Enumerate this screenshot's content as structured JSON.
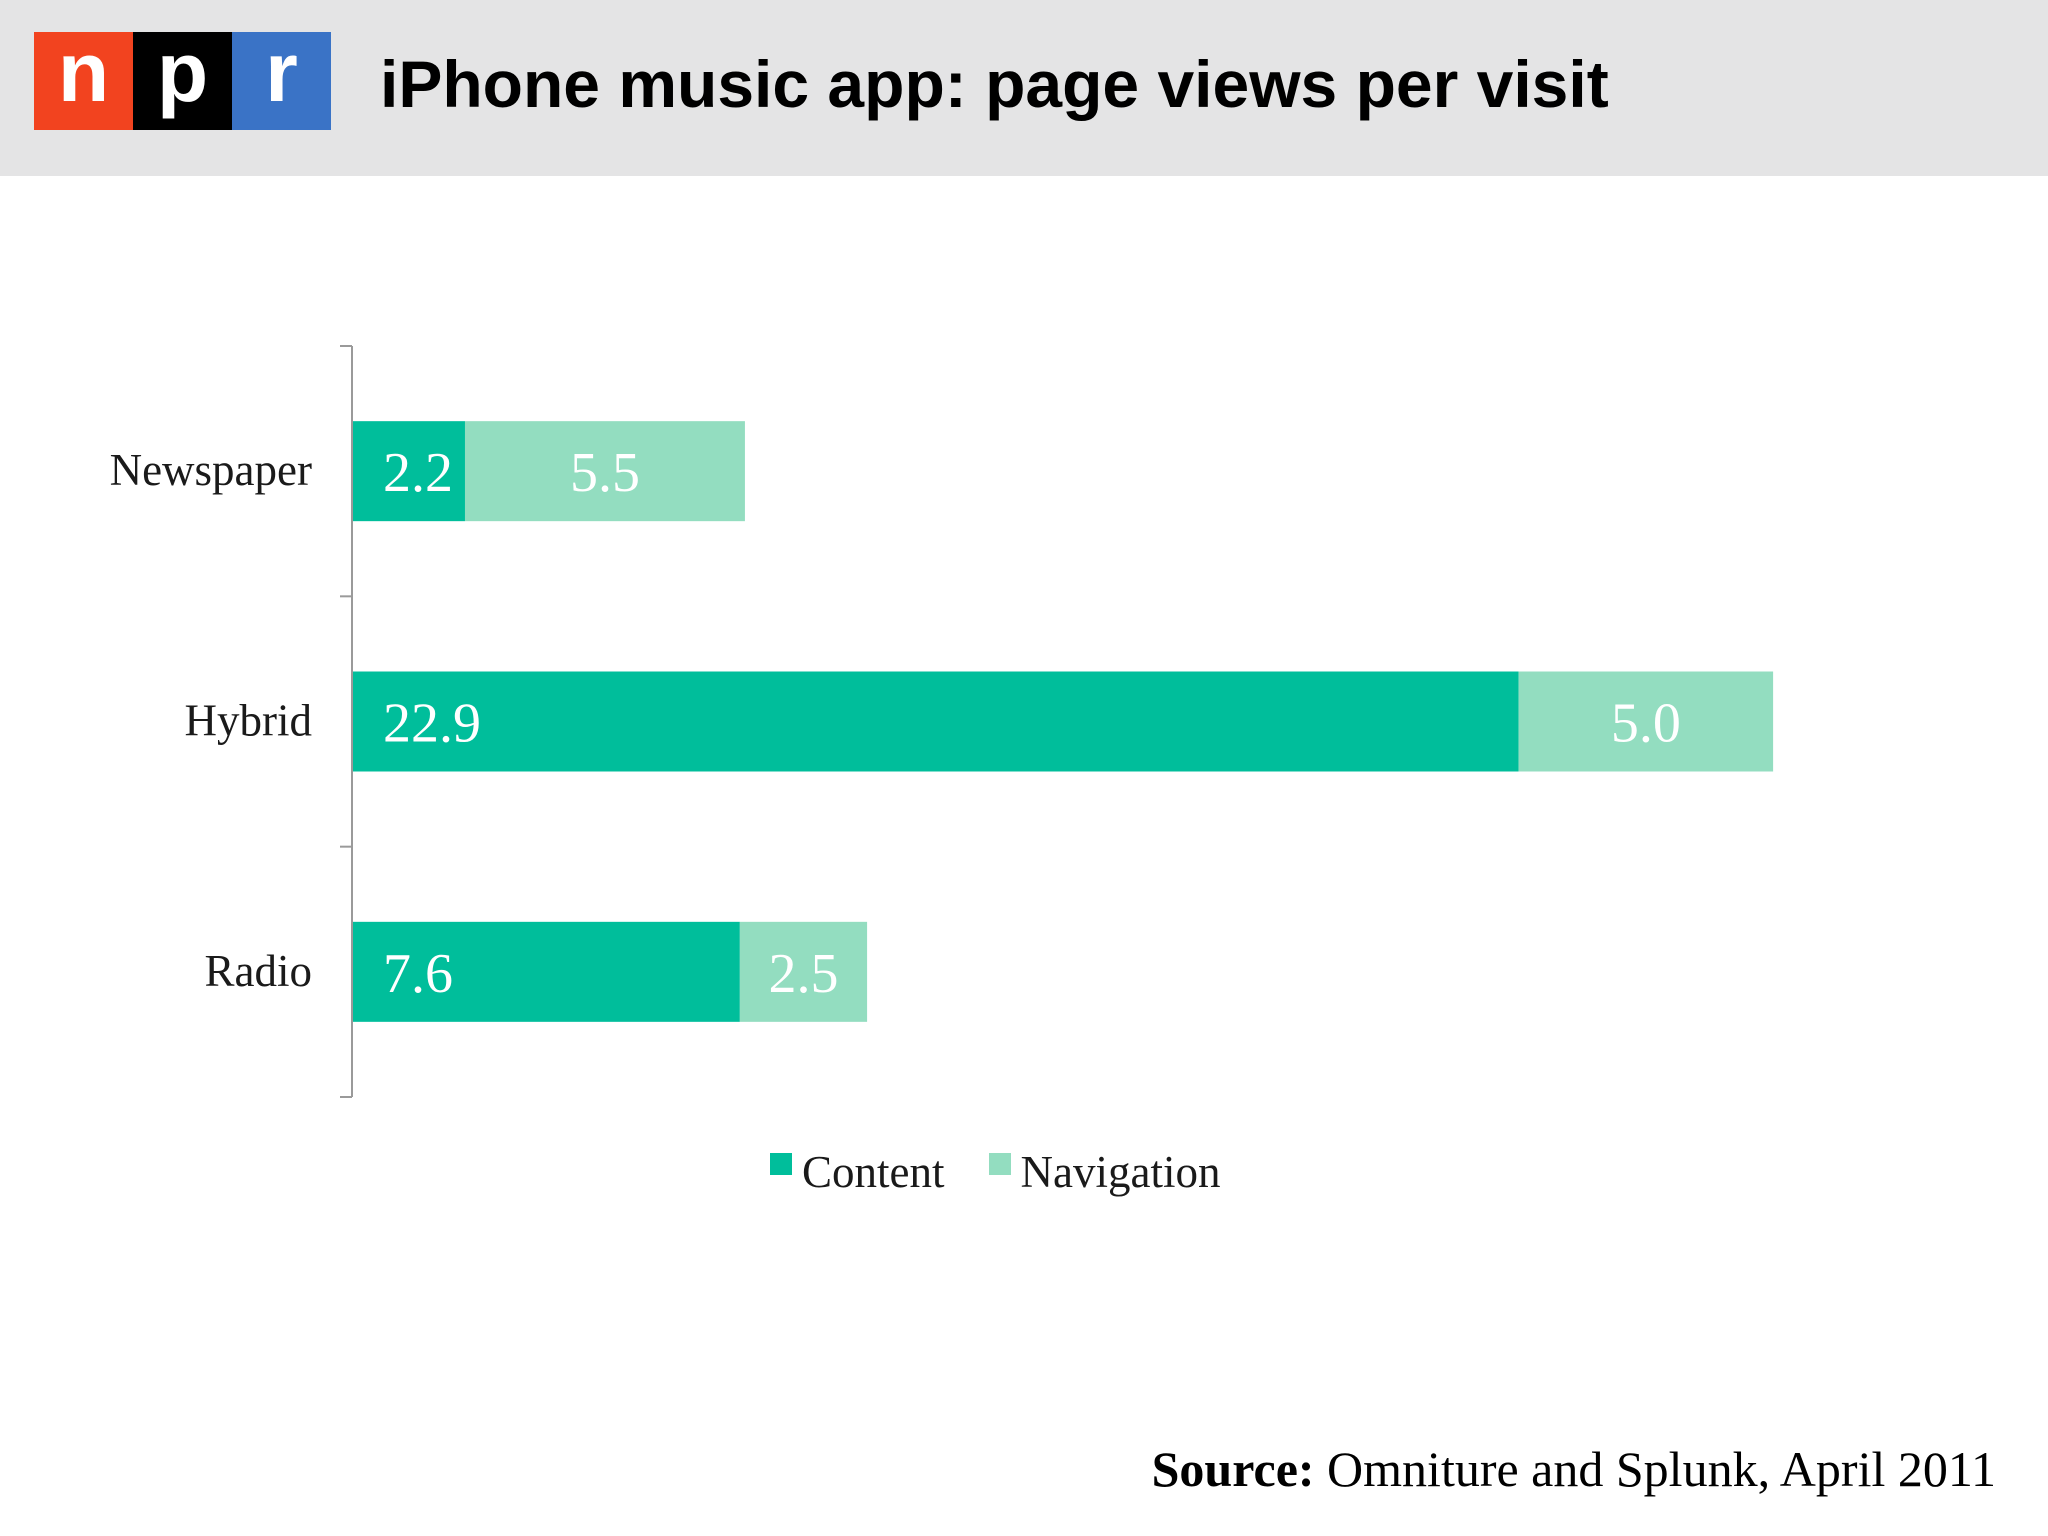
{
  "header": {
    "title": "iPhone music app: page views per visit",
    "logo": {
      "letters": [
        "n",
        "p",
        "r"
      ],
      "colors": [
        "#f2431f",
        "#000000",
        "#3a73c6"
      ]
    }
  },
  "source": {
    "label": "Source:",
    "text": "Omniture and Splunk, April 2011"
  },
  "colors": {
    "content": "#00be9b",
    "navigation": "#93ddc0"
  },
  "chart_data": {
    "type": "bar",
    "orientation": "horizontal",
    "stacked": true,
    "categories": [
      "Newspaper",
      "Hybrid",
      "Radio"
    ],
    "series": [
      {
        "name": "Content",
        "values": [
          2.2,
          22.9,
          7.6
        ],
        "color": "#00be9b"
      },
      {
        "name": "Navigation",
        "values": [
          5.5,
          5.0,
          2.5
        ],
        "color": "#93ddc0"
      }
    ],
    "xlim": [
      0,
      28
    ],
    "grid": false,
    "legend_position": "bottom"
  }
}
